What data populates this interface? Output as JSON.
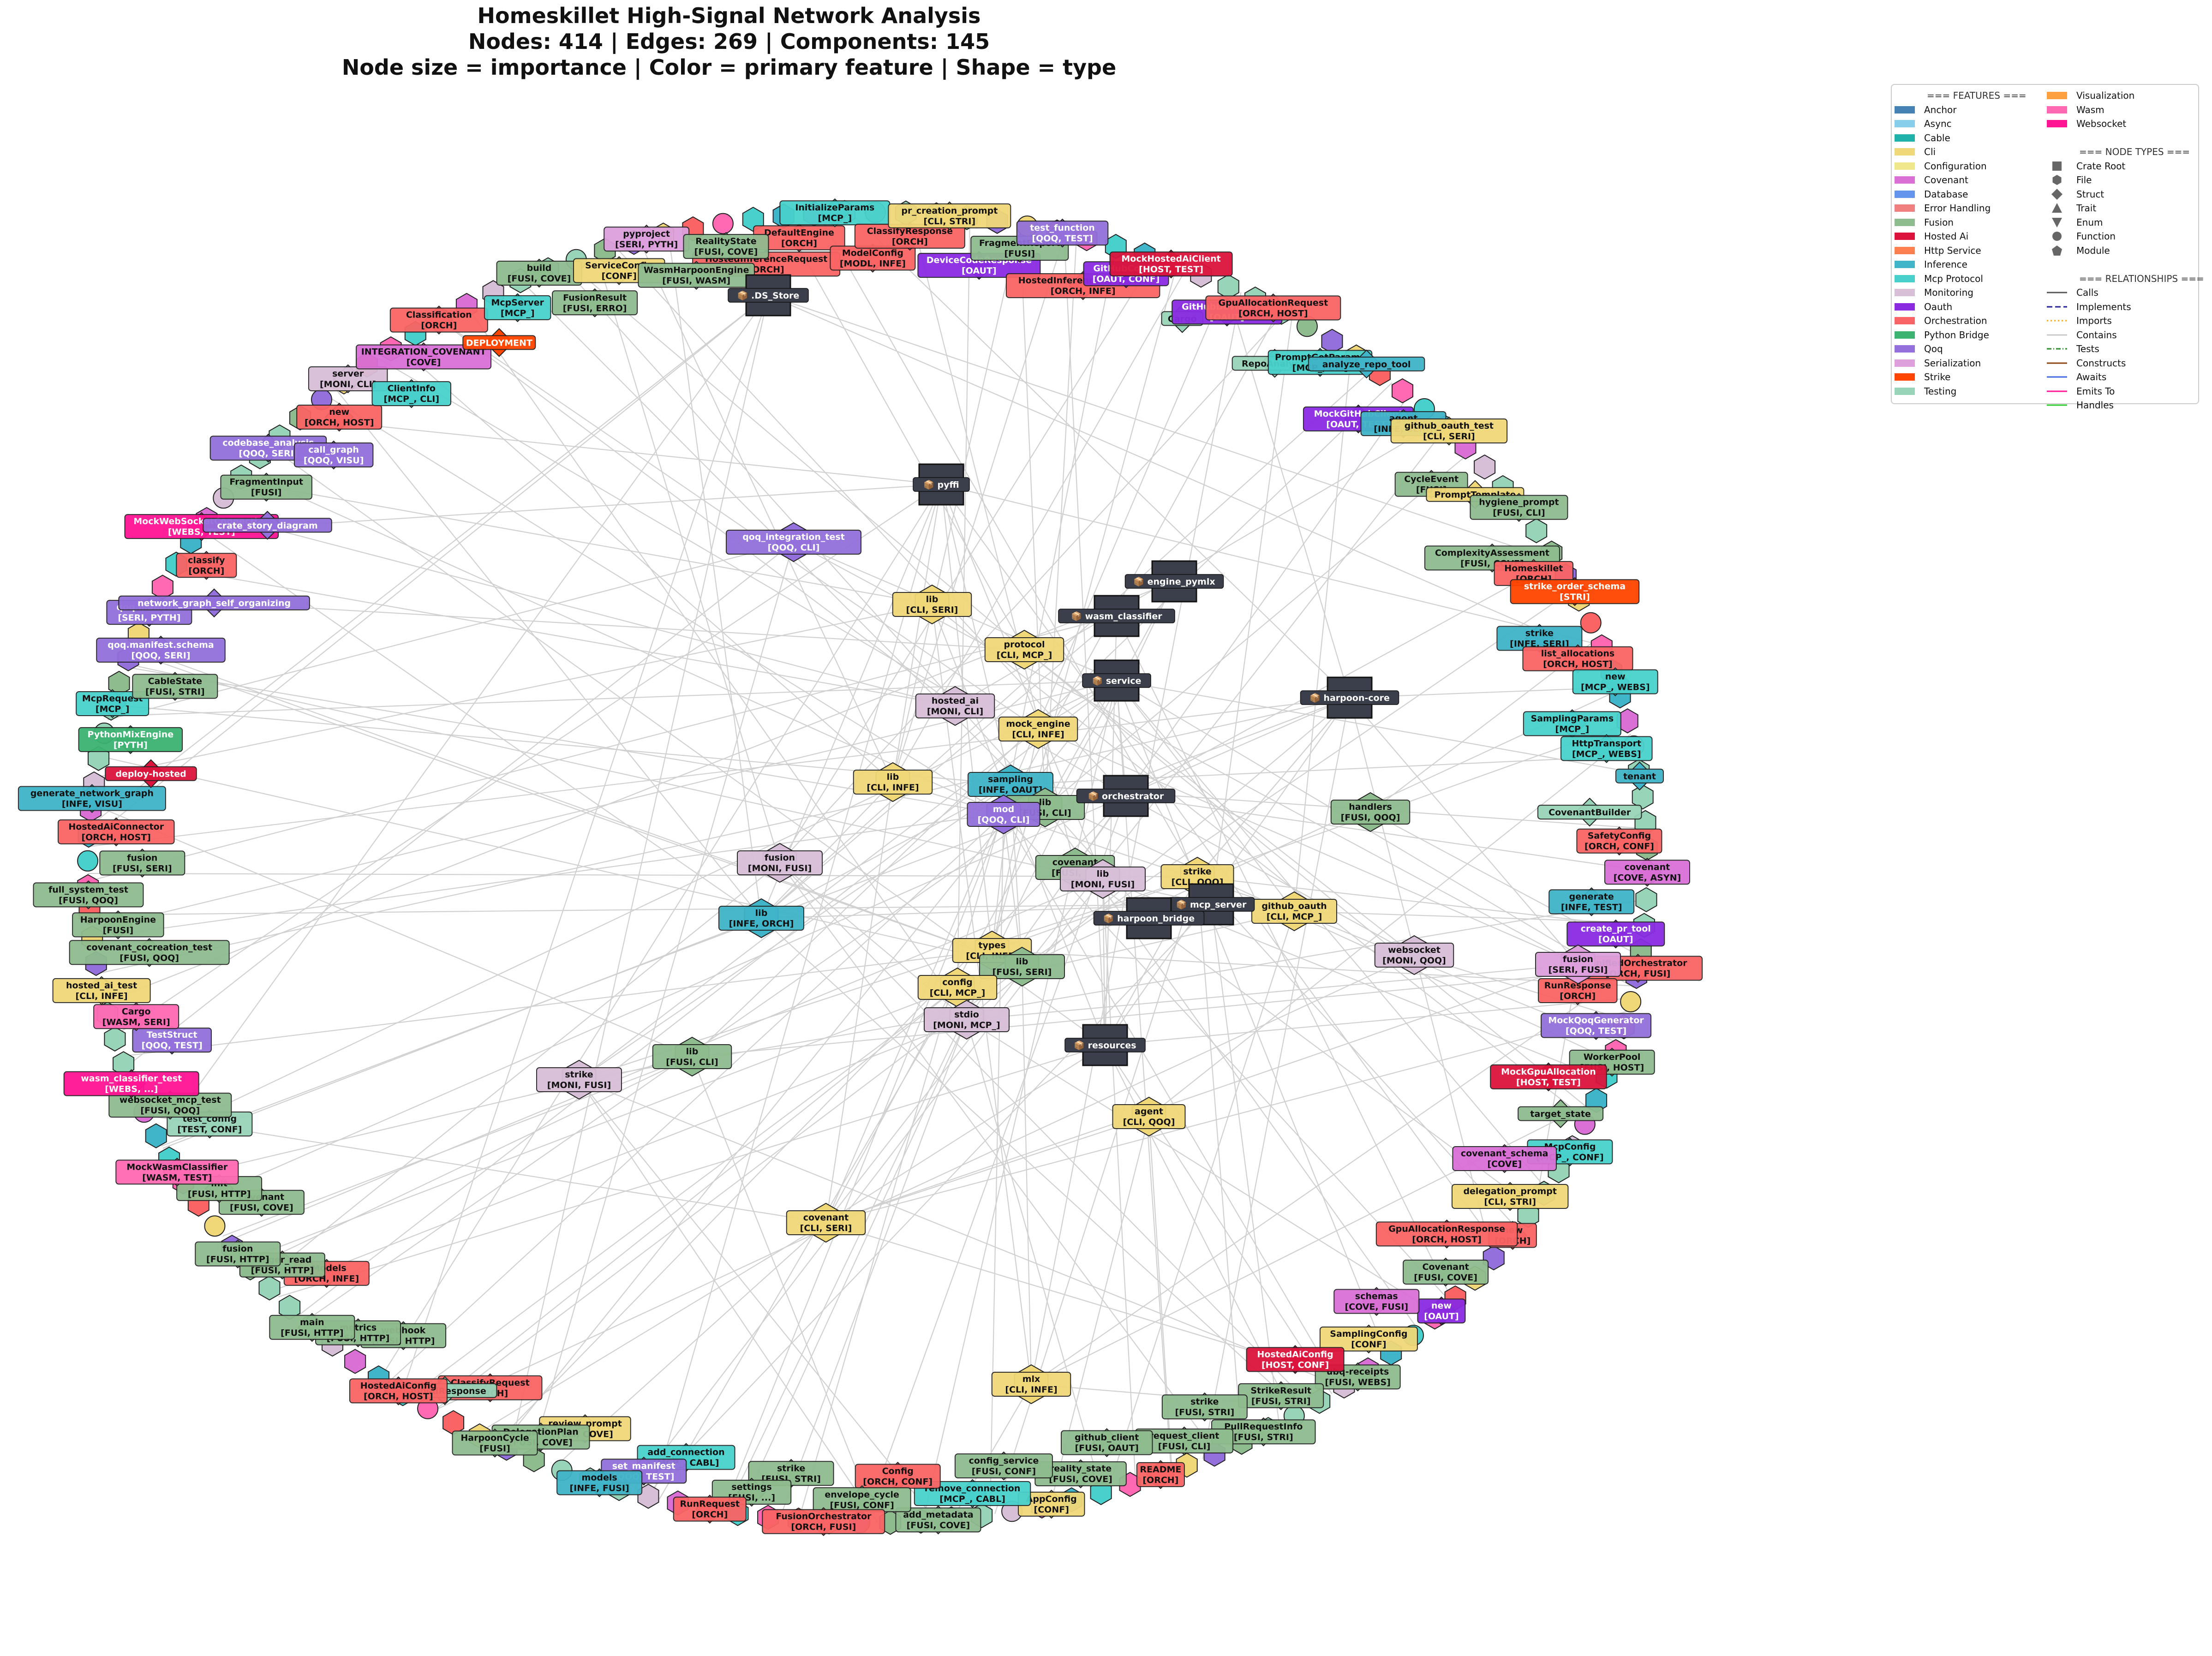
{
  "title": {
    "line1": "Homeskillet High-Signal Network Analysis",
    "line2": "Nodes: 414 | Edges: 269 | Components: 145",
    "line3": "Node size = importance | Color = primary feature | Shape = type"
  },
  "colors": {
    "Anchor": "#4682b4",
    "Async": "#87ceeb",
    "Cable": "#20b2aa",
    "Cli": "#f0d878",
    "Configuration": "#f0e68c",
    "Covenant": "#da70d6",
    "Database": "#6495ed",
    "ErrorHandling": "#f08080",
    "Fusion": "#8fbc8f",
    "HostedAi": "#dc143c",
    "HttpService": "#ff7f50",
    "Inference": "#40b4c8",
    "McpProtocol": "#48d1cc",
    "Monitoring": "#d8bfd8",
    "Oauth": "#8a2be2",
    "Orchestration": "#fa6464",
    "PythonBridge": "#3cb371",
    "Qoq": "#9370db",
    "Serialization": "#dda0dd",
    "Strike": "#ff4500",
    "Testing": "#98d4b8",
    "Visualization": "#ffa040",
    "Wasm": "#ff69b4",
    "Websocket": "#ff1493",
    "Crate": "#3a3f4b",
    "Edge": "#c8c8c8"
  },
  "legend": {
    "features_header": "=== FEATURES ===",
    "features": [
      {
        "label": "Anchor",
        "color": "#4682b4"
      },
      {
        "label": "Async",
        "color": "#87ceeb"
      },
      {
        "label": "Cable",
        "color": "#20b2aa"
      },
      {
        "label": "Cli",
        "color": "#f0d878"
      },
      {
        "label": "Configuration",
        "color": "#f0e68c"
      },
      {
        "label": "Covenant",
        "color": "#da70d6"
      },
      {
        "label": "Database",
        "color": "#6495ed"
      },
      {
        "label": "Error Handling",
        "color": "#f08080"
      },
      {
        "label": "Fusion",
        "color": "#8fbc8f"
      },
      {
        "label": "Hosted Ai",
        "color": "#dc143c"
      },
      {
        "label": "Http Service",
        "color": "#ff7f50"
      },
      {
        "label": "Inference",
        "color": "#40b4c8"
      },
      {
        "label": "Mcp Protocol",
        "color": "#48d1cc"
      },
      {
        "label": "Monitoring",
        "color": "#d8bfd8"
      },
      {
        "label": "Oauth",
        "color": "#8a2be2"
      },
      {
        "label": "Orchestration",
        "color": "#fa6464"
      },
      {
        "label": "Python Bridge",
        "color": "#3cb371"
      },
      {
        "label": "Qoq",
        "color": "#9370db"
      },
      {
        "label": "Serialization",
        "color": "#dda0dd"
      },
      {
        "label": "Strike",
        "color": "#ff4500"
      },
      {
        "label": "Testing",
        "color": "#98d4b8"
      },
      {
        "label": "Visualization",
        "color": "#ffa040"
      },
      {
        "label": "Wasm",
        "color": "#ff69b4"
      },
      {
        "label": "Websocket",
        "color": "#ff1493"
      }
    ],
    "node_types_header": "=== NODE TYPES ===",
    "node_types": [
      {
        "label": "Crate Root",
        "shape": "square"
      },
      {
        "label": "File",
        "shape": "hexagon"
      },
      {
        "label": "Struct",
        "shape": "diamond"
      },
      {
        "label": "Trait",
        "shape": "triangle-up"
      },
      {
        "label": "Enum",
        "shape": "triangle-down"
      },
      {
        "label": "Function",
        "shape": "circle"
      },
      {
        "label": "Module",
        "shape": "pentagon"
      }
    ],
    "relationships_header": "=== RELATIONSHIPS ===",
    "relationships": [
      {
        "label": "Calls",
        "color": "#555555",
        "dash": "none"
      },
      {
        "label": "Implements",
        "color": "#1f1fa0",
        "dash": "12,6"
      },
      {
        "label": "Imports",
        "color": "#f5a623",
        "dash": "3,5"
      },
      {
        "label": "Contains",
        "color": "#c8c8c8",
        "dash": "none"
      },
      {
        "label": "Tests",
        "color": "#2e8b2e",
        "dash": "10,4,2,4"
      },
      {
        "label": "Constructs",
        "color": "#8b4513",
        "dash": "none"
      },
      {
        "label": "Awaits",
        "color": "#4169e1",
        "dash": "none"
      },
      {
        "label": "Emits To",
        "color": "#ff1493",
        "dash": "none"
      },
      {
        "label": "Handles",
        "color": "#32cd32",
        "dash": "none"
      }
    ]
  },
  "crates": [
    "📦 pyffi",
    "📦 engine_pymlx",
    "📦 wasm_classifier",
    "📦 service",
    "📦 harpoon-core",
    "📦 orchestrator",
    "📦 mcp_server",
    "📦 harpoon_bridge",
    "📦 resources",
    "📦 .DS_Store"
  ],
  "inner_nodes": [
    {
      "name": "qoq_integration_test",
      "tags": "[QOQ, CLI]",
      "feature": "Qoq"
    },
    {
      "name": "lib",
      "tags": "[CLI, SERI]",
      "feature": "Cli"
    },
    {
      "name": "protocol",
      "tags": "[CLI, MCP_]",
      "feature": "Cli"
    },
    {
      "name": "hosted_ai",
      "tags": "[MONI, CLI]",
      "feature": "Monitoring"
    },
    {
      "name": "mock_engine",
      "tags": "[CLI, INFE]",
      "feature": "Cli"
    },
    {
      "name": "lib",
      "tags": "[CLI, INFE]",
      "feature": "Cli"
    },
    {
      "name": "sampling",
      "tags": "[INFE, OAUT]",
      "feature": "Inference"
    },
    {
      "name": "lib",
      "tags": "[FUSI, CLI]",
      "feature": "Fusion"
    },
    {
      "name": "mod",
      "tags": "[QOQ, CLI]",
      "feature": "Qoq"
    },
    {
      "name": "handlers",
      "tags": "[FUSI, QOQ]",
      "feature": "Fusion"
    },
    {
      "name": "fusion",
      "tags": "[MONI, FUSI]",
      "feature": "Monitoring"
    },
    {
      "name": "lib",
      "tags": "[INFE, ORCH]",
      "feature": "Inference"
    },
    {
      "name": "covenant",
      "tags": "[FUSI, ...]",
      "feature": "Fusion"
    },
    {
      "name": "lib",
      "tags": "[MONI, FUSI]",
      "feature": "Monitoring"
    },
    {
      "name": "strike",
      "tags": "[CLI, QOQ]",
      "feature": "Cli"
    },
    {
      "name": "github_oauth",
      "tags": "[CLI, MCP_]",
      "feature": "Cli"
    },
    {
      "name": "types",
      "tags": "[CLI, INFE]",
      "feature": "Cli"
    },
    {
      "name": "lib",
      "tags": "[FUSI, SERI]",
      "feature": "Fusion"
    },
    {
      "name": "config",
      "tags": "[CLI, MCP_]",
      "feature": "Cli"
    },
    {
      "name": "stdio",
      "tags": "[MONI, MCP_]",
      "feature": "Monitoring"
    },
    {
      "name": "websocket",
      "tags": "[MONI, QOQ]",
      "feature": "Monitoring"
    },
    {
      "name": "fusion",
      "tags": "[SERI, FUSI]",
      "feature": "Serialization"
    },
    {
      "name": "strike",
      "tags": "[MONI, FUSI]",
      "feature": "Monitoring"
    },
    {
      "name": "lib",
      "tags": "[FUSI, CLI]",
      "feature": "Fusion"
    },
    {
      "name": "agent",
      "tags": "[CLI, QOQ]",
      "feature": "Cli"
    },
    {
      "name": "covenant",
      "tags": "[CLI, SERI]",
      "feature": "Cli"
    },
    {
      "name": "mlx",
      "tags": "[CLI, INFE]",
      "feature": "Cli"
    }
  ],
  "ring_nodes": [
    {
      "name": "HostedInferenceRequest",
      "tags": "[ORCH]",
      "feature": "Orchestration"
    },
    {
      "name": "DefaultEngine",
      "tags": "[ORCH]",
      "feature": "Orchestration"
    },
    {
      "name": "InitializeParams",
      "tags": "[MCP_]",
      "feature": "McpProtocol"
    },
    {
      "name": "ModelConfig",
      "tags": "[MODL, INFE]",
      "feature": "Orchestration"
    },
    {
      "name": "ClassifyResponse",
      "tags": "[ORCH]",
      "feature": "Orchestration"
    },
    {
      "name": "pr_creation_prompt",
      "tags": "[CLI, STRI]",
      "feature": "Cli"
    },
    {
      "name": "DeviceCodeResponse",
      "tags": "[OAUT]",
      "feature": "Oauth"
    },
    {
      "name": "FragmentReport",
      "tags": "[FUSI]",
      "feature": "Fusion"
    },
    {
      "name": "test_function",
      "tags": "[QOQ, TEST]",
      "feature": "Qoq"
    },
    {
      "name": "HostedInferenceResponse",
      "tags": "[ORCH, INFE]",
      "feature": "Orchestration"
    },
    {
      "name": "GitHubConfig",
      "tags": "[OAUT, CONF]",
      "feature": "Oauth"
    },
    {
      "name": "MockHostedAiClient",
      "tags": "[HOST, TEST]",
      "feature": "HostedAi"
    },
    {
      "name": "Cargo",
      "tags": "",
      "feature": "Testing"
    },
    {
      "name": "GitHubDeviceFlow",
      "tags": "[OAUT]",
      "feature": "Oauth"
    },
    {
      "name": "GpuAllocationRequest",
      "tags": "[ORCH, HOST]",
      "feature": "Orchestration"
    },
    {
      "name": "RepoAnalysis",
      "tags": "",
      "feature": "Testing"
    },
    {
      "name": "PromptGetParams",
      "tags": "[MCP_, CLI]",
      "feature": "McpProtocol"
    },
    {
      "name": "analyze_repo_tool",
      "tags": "",
      "feature": "Inference"
    },
    {
      "name": "MockGitHubClient",
      "tags": "[OAUT, TEST]",
      "feature": "Oauth"
    },
    {
      "name": "agent",
      "tags": "[INFE, SERI]",
      "feature": "Inference"
    },
    {
      "name": "github_oauth_test",
      "tags": "[CLI, SERI]",
      "feature": "Cli"
    },
    {
      "name": "CycleEvent",
      "tags": "[FUSI]",
      "feature": "Fusion"
    },
    {
      "name": "PromptTemplate",
      "tags": "",
      "feature": "Cli"
    },
    {
      "name": "hygiene_prompt",
      "tags": "[FUSI, CLI]",
      "feature": "Fusion"
    },
    {
      "name": "ComplexityAssessment",
      "tags": "[FUSI, COVE]",
      "feature": "Fusion"
    },
    {
      "name": "Homeskillet",
      "tags": "[ORCH]",
      "feature": "Orchestration"
    },
    {
      "name": "strike_order_schema",
      "tags": "[STRI]",
      "feature": "Strike"
    },
    {
      "name": "strike",
      "tags": "[INFE, SERI]",
      "feature": "Inference"
    },
    {
      "name": "list_allocations",
      "tags": "[ORCH, HOST]",
      "feature": "Orchestration"
    },
    {
      "name": "new",
      "tags": "[MCP_, WEBS]",
      "feature": "McpProtocol"
    },
    {
      "name": "SamplingParams",
      "tags": "[MCP_]",
      "feature": "McpProtocol"
    },
    {
      "name": "HttpTransport",
      "tags": "[MCP_, WEBS]",
      "feature": "McpProtocol"
    },
    {
      "name": "tenant",
      "tags": "",
      "feature": "Inference"
    },
    {
      "name": "CovenantBuilder",
      "tags": "",
      "feature": "Testing"
    },
    {
      "name": "SafetyConfig",
      "tags": "[ORCH, CONF]",
      "feature": "Orchestration"
    },
    {
      "name": "covenant",
      "tags": "[COVE, ASYN]",
      "feature": "Covenant"
    },
    {
      "name": "generate",
      "tags": "[INFE, TEST]",
      "feature": "Inference"
    },
    {
      "name": "create_pr_tool",
      "tags": "[OAUT]",
      "feature": "Oauth"
    },
    {
      "name": "UnifiedOrchestrator",
      "tags": "[ORCH, FUSI]",
      "feature": "Orchestration"
    },
    {
      "name": "RunResponse",
      "tags": "[ORCH]",
      "feature": "Orchestration"
    },
    {
      "name": "MockQoqGenerator",
      "tags": "[QOQ, TEST]",
      "feature": "Qoq"
    },
    {
      "name": "WorkerPool",
      "tags": "[FUSI, HOST]",
      "feature": "Fusion"
    },
    {
      "name": "MockGpuAllocation",
      "tags": "[HOST, TEST]",
      "feature": "HostedAi"
    },
    {
      "name": "target_state",
      "tags": "",
      "feature": "Fusion"
    },
    {
      "name": "McpConfig",
      "tags": "[MCP_, CONF]",
      "feature": "McpProtocol"
    },
    {
      "name": "covenant_schema",
      "tags": "[COVE]",
      "feature": "Covenant"
    },
    {
      "name": "delegation_prompt",
      "tags": "[CLI, STRI]",
      "feature": "Cli"
    },
    {
      "name": "new",
      "tags": "[ORCH]",
      "feature": "Orchestration"
    },
    {
      "name": "GpuAllocationResponse",
      "tags": "[ORCH, HOST]",
      "feature": "Orchestration"
    },
    {
      "name": "Covenant",
      "tags": "[FUSI, COVE]",
      "feature": "Fusion"
    },
    {
      "name": "new",
      "tags": "[OAUT]",
      "feature": "Oauth"
    },
    {
      "name": "schemas",
      "tags": "[COVE, FUSI]",
      "feature": "Covenant"
    },
    {
      "name": "SamplingConfig",
      "tags": "[CONF]",
      "feature": "Cli"
    },
    {
      "name": "ubq-receipts",
      "tags": "[FUSI, WEBS]",
      "feature": "Fusion"
    },
    {
      "name": "HostedAiConfig",
      "tags": "[HOST, CONF]",
      "feature": "HostedAi"
    },
    {
      "name": "StrikeResult",
      "tags": "[FUSI, STRI]",
      "feature": "Fusion"
    },
    {
      "name": "PullRequestInfo",
      "tags": "[FUSI, STRI]",
      "feature": "Fusion"
    },
    {
      "name": "strike",
      "tags": "[FUSI, STRI]",
      "feature": "Fusion"
    },
    {
      "name": "request_client",
      "tags": "[FUSI, CLI]",
      "feature": "Fusion"
    },
    {
      "name": "README",
      "tags": "[ORCH]",
      "feature": "Orchestration"
    },
    {
      "name": "github_client",
      "tags": "[FUSI, OAUT]",
      "feature": "Fusion"
    },
    {
      "name": "reality_state",
      "tags": "[FUSI, COVE]",
      "feature": "Fusion"
    },
    {
      "name": "AppConfig",
      "tags": "[CONF]",
      "feature": "Cli"
    },
    {
      "name": "config_service",
      "tags": "[FUSI, CONF]",
      "feature": "Fusion"
    },
    {
      "name": "remove_connection",
      "tags": "[MCP_, CABL]",
      "feature": "McpProtocol"
    },
    {
      "name": "add_metadata",
      "tags": "[FUSI, COVE]",
      "feature": "Fusion"
    },
    {
      "name": "Config",
      "tags": "[ORCH, CONF]",
      "feature": "Orchestration"
    },
    {
      "name": "envelope_cycle",
      "tags": "[FUSI, CONF]",
      "feature": "Fusion"
    },
    {
      "name": "FusionOrchestrator",
      "tags": "[ORCH, FUSI]",
      "feature": "Orchestration"
    },
    {
      "name": "strike",
      "tags": "[FUSI, STRI]",
      "feature": "Fusion"
    },
    {
      "name": "settings",
      "tags": "[FUSI, ...]",
      "feature": "Fusion"
    },
    {
      "name": "RunRequest",
      "tags": "[ORCH]",
      "feature": "Orchestration"
    },
    {
      "name": "add_connection",
      "tags": "[MCP_, CABL]",
      "feature": "McpProtocol"
    },
    {
      "name": "set_manifest",
      "tags": "[QOQ, TEST]",
      "feature": "Qoq"
    },
    {
      "name": "models",
      "tags": "[INFE, FUSI]",
      "feature": "Inference"
    },
    {
      "name": "review_prompt",
      "tags": "[CLI, COVE]",
      "feature": "Cli"
    },
    {
      "name": "DelegationPlan",
      "tags": "[FUSI, COVE]",
      "feature": "Fusion"
    },
    {
      "name": "HarpoonCycle",
      "tags": "[FUSI]",
      "feature": "Fusion"
    },
    {
      "name": "ClassifyRequest",
      "tags": "[ORCH]",
      "feature": "Orchestration"
    },
    {
      "name": "UnifiedResponse",
      "tags": "",
      "feature": "Testing"
    },
    {
      "name": "HostedAiConfig",
      "tags": "[ORCH, HOST]",
      "feature": "Orchestration"
    },
    {
      "name": "webhook",
      "tags": "[FUSI, HTTP]",
      "feature": "Fusion"
    },
    {
      "name": "metrics",
      "tags": "[FUSI, HTTP]",
      "feature": "Fusion"
    },
    {
      "name": "main",
      "tags": "[FUSI, HTTP]",
      "feature": "Fusion"
    },
    {
      "name": "_Models",
      "tags": "[ORCH, INFE]",
      "feature": "Orchestration"
    },
    {
      "name": "ledger_read",
      "tags": "[FUSI, HTTP]",
      "feature": "Fusion"
    },
    {
      "name": "fusion",
      "tags": "[FUSI, HTTP]",
      "feature": "Fusion"
    },
    {
      "name": "covenant",
      "tags": "[FUSI, COVE]",
      "feature": "Fusion"
    },
    {
      "name": "init",
      "tags": "[FUSI, HTTP]",
      "feature": "Fusion"
    },
    {
      "name": "MockWasmClassifier",
      "tags": "[WASM, TEST]",
      "feature": "Wasm"
    },
    {
      "name": "test_config",
      "tags": "[TEST, CONF]",
      "feature": "Testing"
    },
    {
      "name": "websocket_mcp_test",
      "tags": "[FUSI, QOQ]",
      "feature": "Fusion"
    },
    {
      "name": "wasm_classifier_test",
      "tags": "[WEBS, ...]",
      "feature": "Websocket"
    },
    {
      "name": "TestStruct",
      "tags": "[QOQ, TEST]",
      "feature": "Qoq"
    },
    {
      "name": "Cargo",
      "tags": "[WASM, SERI]",
      "feature": "Wasm"
    },
    {
      "name": "hosted_ai_test",
      "tags": "[CLI, INFE]",
      "feature": "Cli"
    },
    {
      "name": "covenant_cocreation_test",
      "tags": "[FUSI, QOQ]",
      "feature": "Fusion"
    },
    {
      "name": "HarpoonEngine",
      "tags": "[FUSI]",
      "feature": "Fusion"
    },
    {
      "name": "full_system_test",
      "tags": "[FUSI, QOQ]",
      "feature": "Fusion"
    },
    {
      "name": "fusion",
      "tags": "[FUSI, SERI]",
      "feature": "Fusion"
    },
    {
      "name": "HostedAiConnector",
      "tags": "[ORCH, HOST]",
      "feature": "Orchestration"
    },
    {
      "name": "generate_network_graph",
      "tags": "[INFE, VISU]",
      "feature": "Inference"
    },
    {
      "name": "deploy-hosted",
      "tags": "",
      "feature": "HostedAi"
    },
    {
      "name": "PythonMixEngine",
      "tags": "[PYTH]",
      "feature": "PythonBridge"
    },
    {
      "name": "McpRequest",
      "tags": "[MCP_]",
      "feature": "McpProtocol"
    },
    {
      "name": "CableState",
      "tags": "[FUSI, STRI]",
      "feature": "Fusion"
    },
    {
      "name": "qoq.manifest.schema",
      "tags": "[QOQ, SERI]",
      "feature": "Qoq"
    },
    {
      "name": "qoq.manifest",
      "tags": "[SERI, PYTH]",
      "feature": "Qoq"
    },
    {
      "name": "network_graph_self_organizing",
      "tags": "",
      "feature": "Qoq"
    },
    {
      "name": "classify",
      "tags": "[ORCH]",
      "feature": "Orchestration"
    },
    {
      "name": "MockWebSocketConnection",
      "tags": "[WEBS, TEST]",
      "feature": "Websocket"
    },
    {
      "name": "crate_story_diagram",
      "tags": "",
      "feature": "Qoq"
    },
    {
      "name": "FragmentInput",
      "tags": "[FUSI]",
      "feature": "Fusion"
    },
    {
      "name": "codebase_analysis",
      "tags": "[QOQ, SERI]",
      "feature": "Qoq"
    },
    {
      "name": "call_graph",
      "tags": "[QOQ, VISU]",
      "feature": "Qoq"
    },
    {
      "name": "new",
      "tags": "[ORCH, HOST]",
      "feature": "Orchestration"
    },
    {
      "name": "server",
      "tags": "[MONI, CLI]",
      "feature": "Monitoring"
    },
    {
      "name": "ClientInfo",
      "tags": "[MCP_, CLI]",
      "feature": "McpProtocol"
    },
    {
      "name": "INTEGRATION_COVENANT",
      "tags": "[COVE]",
      "feature": "Covenant"
    },
    {
      "name": "Classification",
      "tags": "[ORCH]",
      "feature": "Orchestration"
    },
    {
      "name": "DEPLOYMENT",
      "tags": "",
      "feature": "Strike"
    },
    {
      "name": "McpServer",
      "tags": "[MCP_]",
      "feature": "McpProtocol"
    },
    {
      "name": "build",
      "tags": "[FUSI, COVE]",
      "feature": "Fusion"
    },
    {
      "name": "FusionResult",
      "tags": "[FUSI, ERRO]",
      "feature": "Fusion"
    },
    {
      "name": "ServiceConfig",
      "tags": "[CONF]",
      "feature": "Cli"
    },
    {
      "name": "pyproject",
      "tags": "[SERI, PYTH]",
      "feature": "Serialization"
    },
    {
      "name": "WasmHarpoonEngine",
      "tags": "[FUSI, WASM]",
      "feature": "Fusion"
    },
    {
      "name": "RealityState",
      "tags": "[FUSI, COVE]",
      "feature": "Fusion"
    }
  ]
}
